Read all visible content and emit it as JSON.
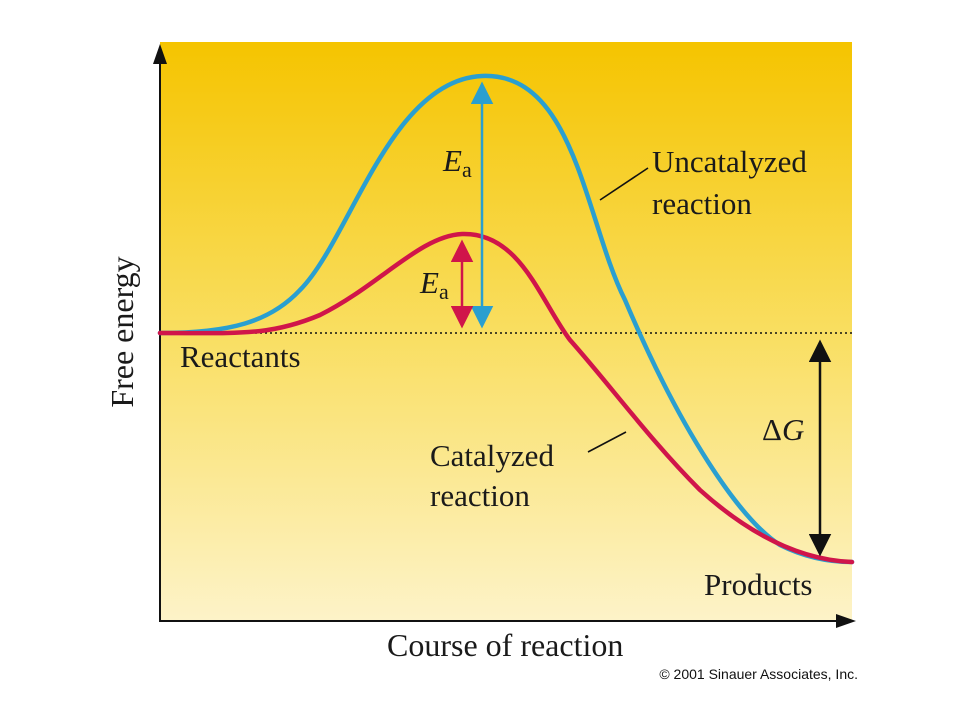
{
  "axes": {
    "y_label": "Free energy",
    "x_label": "Course of reaction"
  },
  "labels": {
    "reactants": "Reactants",
    "products": "Products",
    "uncatalyzed_line1": "Uncatalyzed",
    "uncatalyzed_line2": "reaction",
    "catalyzed_line1": "Catalyzed",
    "catalyzed_line2": "reaction",
    "ea_symbol": "E",
    "ea_subscript": "a",
    "delta_g": "ΔG"
  },
  "copyright": "© 2001 Sinauer Associates, Inc.",
  "colors": {
    "uncatalyzed": "#2a9fd0",
    "catalyzed": "#d0154a",
    "background_top": "#f5c400",
    "background_bottom": "#fdf3c8"
  }
}
